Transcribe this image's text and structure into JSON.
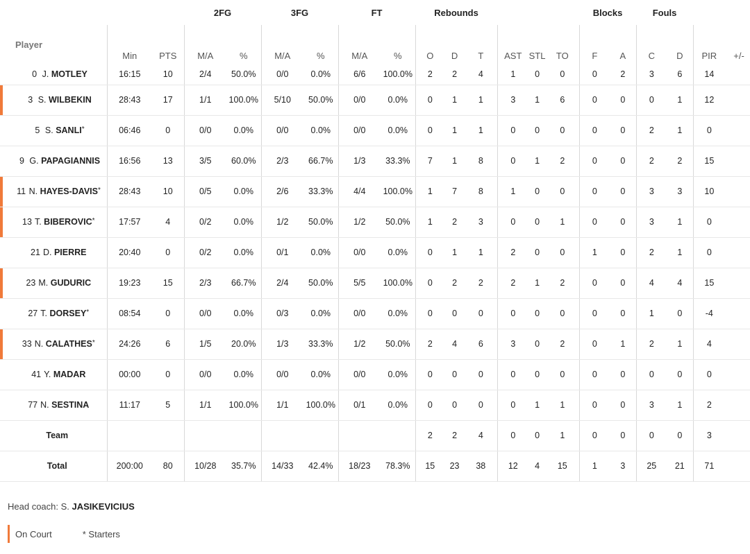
{
  "groups": {
    "fg2": "2FG",
    "fg3": "3FG",
    "ft": "FT",
    "rebounds": "Rebounds",
    "blocks": "Blocks",
    "fouls": "Fouls"
  },
  "columns": {
    "player": "Player",
    "min": "Min",
    "pts": "PTS",
    "fg2_ma": "M/A",
    "fg2_pct": "%",
    "fg3_ma": "M/A",
    "fg3_pct": "%",
    "ft_ma": "M/A",
    "ft_pct": "%",
    "reb_o": "O",
    "reb_d": "D",
    "reb_t": "T",
    "ast": "AST",
    "stl": "STL",
    "to": "TO",
    "blk_f": "F",
    "blk_a": "A",
    "foul_c": "C",
    "foul_d": "D",
    "pir": "PIR",
    "pm": "+/-"
  },
  "players": [
    {
      "num": "0",
      "init": "J.",
      "last": "MOTLEY",
      "starter": false,
      "on_court": false,
      "min": "16:15",
      "pts": "10",
      "fg2_ma": "2/4",
      "fg2_pct": "50.0%",
      "fg3_ma": "0/0",
      "fg3_pct": "0.0%",
      "ft_ma": "6/6",
      "ft_pct": "100.0%",
      "reb_o": "2",
      "reb_d": "2",
      "reb_t": "4",
      "ast": "1",
      "stl": "0",
      "to": "0",
      "blk_f": "0",
      "blk_a": "2",
      "foul_c": "3",
      "foul_d": "6",
      "pir": "14",
      "pm": ""
    },
    {
      "num": "3",
      "init": "S.",
      "last": "WILBEKIN",
      "starter": false,
      "on_court": true,
      "min": "28:43",
      "pts": "17",
      "fg2_ma": "1/1",
      "fg2_pct": "100.0%",
      "fg3_ma": "5/10",
      "fg3_pct": "50.0%",
      "ft_ma": "0/0",
      "ft_pct": "0.0%",
      "reb_o": "0",
      "reb_d": "1",
      "reb_t": "1",
      "ast": "3",
      "stl": "1",
      "to": "6",
      "blk_f": "0",
      "blk_a": "0",
      "foul_c": "0",
      "foul_d": "1",
      "pir": "12",
      "pm": ""
    },
    {
      "num": "5",
      "init": "S.",
      "last": "SANLI",
      "starter": true,
      "on_court": false,
      "min": "06:46",
      "pts": "0",
      "fg2_ma": "0/0",
      "fg2_pct": "0.0%",
      "fg3_ma": "0/0",
      "fg3_pct": "0.0%",
      "ft_ma": "0/0",
      "ft_pct": "0.0%",
      "reb_o": "0",
      "reb_d": "1",
      "reb_t": "1",
      "ast": "0",
      "stl": "0",
      "to": "0",
      "blk_f": "0",
      "blk_a": "0",
      "foul_c": "2",
      "foul_d": "1",
      "pir": "0",
      "pm": ""
    },
    {
      "num": "9",
      "init": "G.",
      "last": "PAPAGIANNIS",
      "starter": false,
      "on_court": false,
      "min": "16:56",
      "pts": "13",
      "fg2_ma": "3/5",
      "fg2_pct": "60.0%",
      "fg3_ma": "2/3",
      "fg3_pct": "66.7%",
      "ft_ma": "1/3",
      "ft_pct": "33.3%",
      "reb_o": "7",
      "reb_d": "1",
      "reb_t": "8",
      "ast": "0",
      "stl": "1",
      "to": "2",
      "blk_f": "0",
      "blk_a": "0",
      "foul_c": "2",
      "foul_d": "2",
      "pir": "15",
      "pm": ""
    },
    {
      "num": "11",
      "init": "N.",
      "last": "HAYES-DAVIS",
      "starter": true,
      "on_court": true,
      "min": "28:43",
      "pts": "10",
      "fg2_ma": "0/5",
      "fg2_pct": "0.0%",
      "fg3_ma": "2/6",
      "fg3_pct": "33.3%",
      "ft_ma": "4/4",
      "ft_pct": "100.0%",
      "reb_o": "1",
      "reb_d": "7",
      "reb_t": "8",
      "ast": "1",
      "stl": "0",
      "to": "0",
      "blk_f": "0",
      "blk_a": "0",
      "foul_c": "3",
      "foul_d": "3",
      "pir": "10",
      "pm": ""
    },
    {
      "num": "13",
      "init": "T.",
      "last": "BIBEROVIC",
      "starter": true,
      "on_court": true,
      "min": "17:57",
      "pts": "4",
      "fg2_ma": "0/2",
      "fg2_pct": "0.0%",
      "fg3_ma": "1/2",
      "fg3_pct": "50.0%",
      "ft_ma": "1/2",
      "ft_pct": "50.0%",
      "reb_o": "1",
      "reb_d": "2",
      "reb_t": "3",
      "ast": "0",
      "stl": "0",
      "to": "1",
      "blk_f": "0",
      "blk_a": "0",
      "foul_c": "3",
      "foul_d": "1",
      "pir": "0",
      "pm": ""
    },
    {
      "num": "21",
      "init": "D.",
      "last": "PIERRE",
      "starter": false,
      "on_court": false,
      "min": "20:40",
      "pts": "0",
      "fg2_ma": "0/2",
      "fg2_pct": "0.0%",
      "fg3_ma": "0/1",
      "fg3_pct": "0.0%",
      "ft_ma": "0/0",
      "ft_pct": "0.0%",
      "reb_o": "0",
      "reb_d": "1",
      "reb_t": "1",
      "ast": "2",
      "stl": "0",
      "to": "0",
      "blk_f": "1",
      "blk_a": "0",
      "foul_c": "2",
      "foul_d": "1",
      "pir": "0",
      "pm": ""
    },
    {
      "num": "23",
      "init": "M.",
      "last": "GUDURIC",
      "starter": false,
      "on_court": true,
      "min": "19:23",
      "pts": "15",
      "fg2_ma": "2/3",
      "fg2_pct": "66.7%",
      "fg3_ma": "2/4",
      "fg3_pct": "50.0%",
      "ft_ma": "5/5",
      "ft_pct": "100.0%",
      "reb_o": "0",
      "reb_d": "2",
      "reb_t": "2",
      "ast": "2",
      "stl": "1",
      "to": "2",
      "blk_f": "0",
      "blk_a": "0",
      "foul_c": "4",
      "foul_d": "4",
      "pir": "15",
      "pm": ""
    },
    {
      "num": "27",
      "init": "T.",
      "last": "DORSEY",
      "starter": true,
      "on_court": false,
      "min": "08:54",
      "pts": "0",
      "fg2_ma": "0/0",
      "fg2_pct": "0.0%",
      "fg3_ma": "0/3",
      "fg3_pct": "0.0%",
      "ft_ma": "0/0",
      "ft_pct": "0.0%",
      "reb_o": "0",
      "reb_d": "0",
      "reb_t": "0",
      "ast": "0",
      "stl": "0",
      "to": "0",
      "blk_f": "0",
      "blk_a": "0",
      "foul_c": "1",
      "foul_d": "0",
      "pir": "-4",
      "pm": ""
    },
    {
      "num": "33",
      "init": "N.",
      "last": "CALATHES",
      "starter": true,
      "on_court": true,
      "min": "24:26",
      "pts": "6",
      "fg2_ma": "1/5",
      "fg2_pct": "20.0%",
      "fg3_ma": "1/3",
      "fg3_pct": "33.3%",
      "ft_ma": "1/2",
      "ft_pct": "50.0%",
      "reb_o": "2",
      "reb_d": "4",
      "reb_t": "6",
      "ast": "3",
      "stl": "0",
      "to": "2",
      "blk_f": "0",
      "blk_a": "1",
      "foul_c": "2",
      "foul_d": "1",
      "pir": "4",
      "pm": ""
    },
    {
      "num": "41",
      "init": "Y.",
      "last": "MADAR",
      "starter": false,
      "on_court": false,
      "min": "00:00",
      "pts": "0",
      "fg2_ma": "0/0",
      "fg2_pct": "0.0%",
      "fg3_ma": "0/0",
      "fg3_pct": "0.0%",
      "ft_ma": "0/0",
      "ft_pct": "0.0%",
      "reb_o": "0",
      "reb_d": "0",
      "reb_t": "0",
      "ast": "0",
      "stl": "0",
      "to": "0",
      "blk_f": "0",
      "blk_a": "0",
      "foul_c": "0",
      "foul_d": "0",
      "pir": "0",
      "pm": ""
    },
    {
      "num": "77",
      "init": "N.",
      "last": "SESTINA",
      "starter": false,
      "on_court": false,
      "min": "11:17",
      "pts": "5",
      "fg2_ma": "1/1",
      "fg2_pct": "100.0%",
      "fg3_ma": "1/1",
      "fg3_pct": "100.0%",
      "ft_ma": "0/1",
      "ft_pct": "0.0%",
      "reb_o": "0",
      "reb_d": "0",
      "reb_t": "0",
      "ast": "0",
      "stl": "1",
      "to": "1",
      "blk_f": "0",
      "blk_a": "0",
      "foul_c": "3",
      "foul_d": "1",
      "pir": "2",
      "pm": ""
    }
  ],
  "team": {
    "label": "Team",
    "min": "",
    "pts": "",
    "fg2_ma": "",
    "fg2_pct": "",
    "fg3_ma": "",
    "fg3_pct": "",
    "ft_ma": "",
    "ft_pct": "",
    "reb_o": "2",
    "reb_d": "2",
    "reb_t": "4",
    "ast": "0",
    "stl": "0",
    "to": "1",
    "blk_f": "0",
    "blk_a": "0",
    "foul_c": "0",
    "foul_d": "0",
    "pir": "3",
    "pm": ""
  },
  "total": {
    "label": "Total",
    "min": "200:00",
    "pts": "80",
    "fg2_ma": "10/28",
    "fg2_pct": "35.7%",
    "fg3_ma": "14/33",
    "fg3_pct": "42.4%",
    "ft_ma": "18/23",
    "ft_pct": "78.3%",
    "reb_o": "15",
    "reb_d": "23",
    "reb_t": "38",
    "ast": "12",
    "stl": "4",
    "to": "15",
    "blk_f": "1",
    "blk_a": "3",
    "foul_c": "25",
    "foul_d": "21",
    "pir": "71",
    "pm": ""
  },
  "coach": {
    "prefix": "Head coach: S.",
    "name": "JASIKEVICIUS"
  },
  "legend": {
    "on_court": "On Court",
    "starters": "* Starters"
  },
  "colors": {
    "on_court_accent": "#f07a3a"
  }
}
